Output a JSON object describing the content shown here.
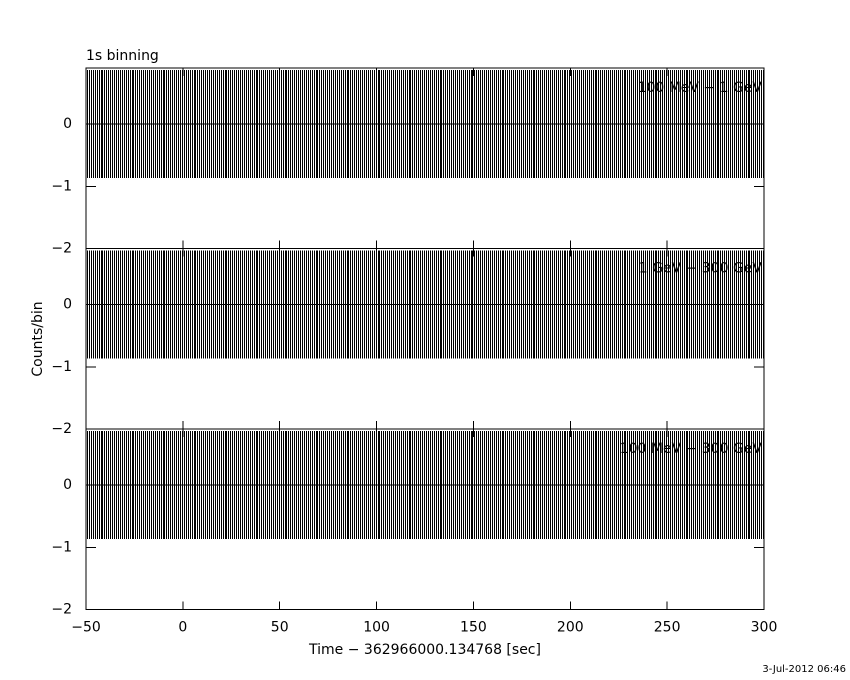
{
  "chart_data": {
    "type": "errorbar",
    "annotations": [
      "1s binning",
      "3-Jul-2012 06:46"
    ],
    "xlabel": "Time − 362966000.134768 [sec]",
    "ylabel": "Counts/bin",
    "xlim": [
      -50,
      300
    ],
    "xticks": [
      {
        "value": -50,
        "label": "−50"
      },
      0,
      50,
      100,
      150,
      200,
      250,
      300
    ],
    "ylim": [
      -2,
      0.9
    ],
    "yticks": [
      {
        "value": -2,
        "label": "−2"
      },
      {
        "value": -1,
        "label": "−1"
      },
      0
    ],
    "x": [
      -49.5,
      -48.5,
      -47.5,
      -46.5,
      -45.5,
      -44.5,
      -43.5,
      -42.5,
      -41.5,
      -40.5,
      -39.5,
      -38.5,
      -37.5,
      -36.5,
      -35.5,
      -34.5,
      -33.5,
      -32.5,
      -31.5,
      -30.5,
      -29.5,
      -28.5,
      -27.5,
      -26.5,
      -25.5,
      -24.5,
      -23.5,
      -22.5,
      -21.5,
      -20.5,
      -19.5,
      -18.5,
      -17.5,
      -16.5,
      -15.5,
      -14.5,
      -13.5,
      -12.5,
      -11.5,
      -10.5,
      -9.5,
      -8.5,
      -7.5,
      -6.5,
      -5.5,
      -4.5,
      -3.5,
      -2.5,
      -1.5,
      -0.5,
      0.5,
      1.5,
      2.5,
      3.5,
      4.5,
      5.5,
      6.5,
      7.5,
      8.5,
      9.5,
      10.5,
      11.5,
      12.5,
      13.5,
      14.5,
      15.5,
      16.5,
      17.5,
      18.5,
      19.5,
      20.5,
      21.5,
      22.5,
      23.5,
      24.5,
      25.5,
      26.5,
      27.5,
      28.5,
      29.5,
      30.5,
      31.5,
      32.5,
      33.5,
      34.5,
      35.5,
      36.5,
      37.5,
      38.5,
      39.5,
      40.5,
      41.5,
      42.5,
      43.5,
      44.5,
      45.5,
      46.5,
      47.5,
      48.5,
      49.5,
      50.5,
      51.5,
      52.5,
      53.5,
      54.5,
      55.5,
      56.5,
      57.5,
      58.5,
      59.5,
      60.5,
      61.5,
      62.5,
      63.5,
      64.5,
      65.5,
      66.5,
      67.5,
      68.5,
      69.5,
      70.5,
      71.5,
      72.5,
      73.5,
      74.5,
      75.5,
      76.5,
      77.5,
      78.5,
      79.5,
      80.5,
      81.5,
      82.5,
      83.5,
      84.5,
      85.5,
      86.5,
      87.5,
      88.5,
      89.5,
      90.5,
      91.5,
      92.5,
      93.5,
      94.5,
      95.5,
      96.5,
      97.5,
      98.5,
      99.5,
      100.5,
      101.5,
      102.5,
      103.5,
      104.5,
      105.5,
      106.5,
      107.5,
      108.5,
      109.5,
      110.5,
      111.5,
      112.5,
      113.5,
      114.5,
      115.5,
      116.5,
      117.5,
      118.5,
      119.5,
      120.5,
      121.5,
      122.5,
      123.5,
      124.5,
      125.5,
      126.5,
      127.5,
      128.5,
      129.5,
      130.5,
      131.5,
      132.5,
      133.5,
      134.5,
      135.5,
      136.5,
      137.5,
      138.5,
      139.5,
      140.5,
      141.5,
      142.5,
      143.5,
      144.5,
      145.5,
      146.5,
      147.5,
      148.5,
      149.5,
      150.5,
      151.5,
      152.5,
      153.5,
      154.5,
      155.5,
      156.5,
      157.5,
      158.5,
      159.5,
      160.5,
      161.5,
      162.5,
      163.5,
      164.5,
      165.5,
      166.5,
      167.5,
      168.5,
      169.5,
      170.5,
      171.5,
      172.5,
      173.5,
      174.5,
      175.5,
      176.5,
      177.5,
      178.5,
      179.5,
      180.5,
      181.5,
      182.5,
      183.5,
      184.5,
      185.5,
      186.5,
      187.5,
      188.5,
      189.5,
      190.5,
      191.5,
      192.5,
      193.5,
      194.5,
      195.5,
      196.5,
      197.5,
      198.5,
      199.5,
      200.5,
      201.5,
      202.5,
      203.5,
      204.5,
      205.5,
      206.5,
      207.5,
      208.5,
      209.5,
      210.5,
      211.5,
      212.5,
      213.5,
      214.5,
      215.5,
      216.5,
      217.5,
      218.5,
      219.5,
      220.5,
      221.5,
      222.5,
      223.5,
      224.5,
      225.5,
      226.5,
      227.5,
      228.5,
      229.5,
      230.5,
      231.5,
      232.5,
      233.5,
      234.5,
      235.5,
      236.5,
      237.5,
      238.5,
      239.5,
      240.5,
      241.5,
      242.5,
      243.5,
      244.5,
      245.5,
      246.5,
      247.5,
      248.5,
      249.5,
      250.5,
      251.5,
      252.5,
      253.5,
      254.5,
      255.5,
      256.5,
      257.5,
      258.5,
      259.5,
      260.5,
      261.5,
      262.5,
      263.5,
      264.5,
      265.5,
      266.5,
      267.5,
      268.5,
      269.5,
      270.5,
      271.5,
      272.5,
      273.5,
      274.5,
      275.5,
      276.5,
      277.5,
      278.5,
      279.5,
      280.5,
      281.5,
      282.5,
      283.5,
      284.5,
      285.5,
      286.5,
      287.5,
      288.5,
      289.5,
      290.5,
      291.5,
      292.5,
      293.5,
      294.5,
      295.5,
      296.5,
      297.5,
      298.5,
      299.5
    ],
    "series": [
      {
        "name": "100 MeV − 1 GeV",
        "color": "#000000",
        "error": 0.87,
        "values": [
          0,
          0,
          0,
          0,
          0,
          0,
          0,
          0,
          0,
          0,
          0,
          0,
          0,
          0,
          0,
          0,
          0,
          0,
          0,
          0,
          0,
          0,
          0,
          0,
          0,
          0,
          0,
          0,
          0,
          0,
          0,
          0,
          0,
          0,
          0,
          0,
          0,
          0,
          0,
          0,
          0,
          0,
          0,
          0,
          0,
          0,
          0,
          0,
          0,
          0,
          0,
          0,
          0,
          0,
          0,
          0,
          0,
          0,
          0,
          0,
          0,
          0,
          0,
          0,
          0,
          0,
          0,
          0,
          0,
          0,
          0,
          0,
          0,
          0,
          0,
          0,
          0,
          0,
          0,
          0,
          0,
          0,
          0,
          0,
          0,
          0,
          0,
          0,
          0,
          0,
          0,
          0,
          0,
          0,
          0,
          0,
          0,
          0,
          0,
          0,
          0,
          0,
          0,
          0,
          0,
          0,
          0,
          0,
          0,
          0,
          0,
          0,
          0,
          0,
          0,
          0,
          0,
          0,
          0,
          0,
          0,
          0,
          0,
          0,
          0,
          0,
          0,
          0,
          0,
          0,
          0,
          0,
          0,
          0,
          0,
          0,
          0,
          0,
          0,
          0,
          0,
          0,
          0,
          0,
          0,
          0,
          0,
          0,
          0,
          0,
          0,
          0,
          0,
          0,
          0,
          0,
          0,
          0,
          0,
          0,
          0,
          0,
          0,
          0,
          0,
          0,
          0,
          0,
          0,
          0,
          0,
          0,
          0,
          0,
          0,
          0,
          0,
          0,
          0,
          0,
          0,
          0,
          0,
          0,
          0,
          0,
          0,
          0,
          0,
          0,
          0,
          0,
          0,
          0,
          0,
          0,
          0,
          0,
          0,
          0,
          0,
          0,
          0,
          0,
          0,
          0,
          0,
          0,
          0,
          0,
          0,
          0,
          0,
          0,
          0,
          0,
          0,
          0,
          0,
          0,
          0,
          0,
          0,
          0,
          0,
          0,
          0,
          0,
          0,
          0,
          0,
          0,
          0,
          0,
          0,
          0,
          0,
          0,
          0,
          0,
          0,
          0,
          0,
          0,
          0,
          0,
          0,
          0,
          0,
          0,
          0,
          0,
          0,
          0,
          0,
          0,
          0,
          0,
          0,
          0,
          0,
          0,
          0,
          0,
          0,
          0,
          0,
          0,
          0,
          0,
          0,
          0,
          0,
          0,
          0,
          0,
          0,
          0,
          0,
          0,
          0,
          0,
          0,
          0,
          0,
          0,
          0,
          0,
          0,
          0,
          0,
          0,
          0,
          0,
          0,
          0,
          0,
          0,
          0,
          0,
          0,
          0,
          0,
          0,
          0,
          0,
          0,
          0,
          0,
          0,
          0,
          0,
          0,
          0,
          0,
          0,
          0,
          0,
          0,
          0,
          0,
          0,
          0,
          0,
          0,
          0,
          0,
          0,
          0,
          0,
          0,
          0,
          0,
          0,
          0,
          0,
          0,
          0,
          0,
          0,
          0,
          0,
          0,
          0,
          0,
          0,
          0,
          0,
          0,
          0
        ]
      },
      {
        "name": "1 GeV − 300 GeV",
        "color": "#000000",
        "error": 0.87,
        "values": [
          0,
          0,
          0,
          0,
          0,
          0,
          0,
          0,
          0,
          0,
          0,
          0,
          0,
          0,
          0,
          0,
          0,
          0,
          0,
          0,
          0,
          0,
          0,
          0,
          0,
          0,
          0,
          0,
          0,
          0,
          0,
          0,
          0,
          0,
          0,
          0,
          0,
          0,
          0,
          0,
          0,
          0,
          0,
          0,
          0,
          0,
          0,
          0,
          0,
          0,
          0,
          0,
          0,
          0,
          0,
          0,
          0,
          0,
          0,
          0,
          0,
          0,
          0,
          0,
          0,
          0,
          0,
          0,
          0,
          0,
          0,
          0,
          0,
          0,
          0,
          0,
          0,
          0,
          0,
          0,
          0,
          0,
          0,
          0,
          0,
          0,
          0,
          0,
          0,
          0,
          0,
          0,
          0,
          0,
          0,
          0,
          0,
          0,
          0,
          0,
          0,
          0,
          0,
          0,
          0,
          0,
          0,
          0,
          0,
          0,
          0,
          0,
          0,
          0,
          0,
          0,
          0,
          0,
          0,
          0,
          0,
          0,
          0,
          0,
          0,
          0,
          0,
          0,
          0,
          0,
          0,
          0,
          0,
          0,
          0,
          0,
          0,
          0,
          0,
          0,
          0,
          0,
          0,
          0,
          0,
          0,
          0,
          0,
          0,
          0,
          0,
          0,
          0,
          0,
          0,
          0,
          0,
          0,
          0,
          0,
          0,
          0,
          0,
          0,
          0,
          0,
          0,
          0,
          0,
          0,
          0,
          0,
          0,
          0,
          0,
          0,
          0,
          0,
          0,
          0,
          0,
          0,
          0,
          0,
          0,
          0,
          0,
          0,
          0,
          0,
          0,
          0,
          0,
          0,
          0,
          0,
          0,
          0,
          0,
          0,
          0,
          0,
          0,
          0,
          0,
          0,
          0,
          0,
          0,
          0,
          0,
          0,
          0,
          0,
          0,
          0,
          0,
          0,
          0,
          0,
          0,
          0,
          0,
          0,
          0,
          0,
          0,
          0,
          0,
          0,
          0,
          0,
          0,
          0,
          0,
          0,
          0,
          0,
          0,
          0,
          0,
          0,
          0,
          0,
          0,
          0,
          0,
          0,
          0,
          0,
          0,
          0,
          0,
          0,
          0,
          0,
          0,
          0,
          0,
          0,
          0,
          0,
          0,
          0,
          0,
          0,
          0,
          0,
          0,
          0,
          0,
          0,
          0,
          0,
          0,
          0,
          0,
          0,
          0,
          0,
          0,
          0,
          0,
          0,
          0,
          0,
          0,
          0,
          0,
          0,
          0,
          0,
          0,
          0,
          0,
          0,
          0,
          0,
          0,
          0,
          0,
          0,
          0,
          0,
          0,
          0,
          0,
          0,
          0,
          0,
          0,
          0,
          0,
          0,
          0,
          0,
          0,
          0,
          0,
          0,
          0,
          0,
          0,
          0,
          0,
          0,
          0,
          0,
          0,
          0,
          0,
          0,
          0,
          0,
          0,
          0,
          0,
          0,
          0,
          0,
          0,
          0,
          0,
          0,
          0,
          0,
          0,
          0,
          0,
          0
        ]
      },
      {
        "name": "100 MeV − 300 GeV",
        "color": "#000000",
        "error": 0.87,
        "values": [
          0,
          0,
          0,
          0,
          0,
          0,
          0,
          0,
          0,
          0,
          0,
          0,
          0,
          0,
          0,
          0,
          0,
          0,
          0,
          0,
          0,
          0,
          0,
          0,
          0,
          0,
          0,
          0,
          0,
          0,
          0,
          0,
          0,
          0,
          0,
          0,
          0,
          0,
          0,
          0,
          0,
          0,
          0,
          0,
          0,
          0,
          0,
          0,
          0,
          0,
          0,
          0,
          0,
          0,
          0,
          0,
          0,
          0,
          0,
          0,
          0,
          0,
          0,
          0,
          0,
          0,
          0,
          0,
          0,
          0,
          0,
          0,
          0,
          0,
          0,
          0,
          0,
          0,
          0,
          0,
          0,
          0,
          0,
          0,
          0,
          0,
          0,
          0,
          0,
          0,
          0,
          0,
          0,
          0,
          0,
          0,
          0,
          0,
          0,
          0,
          0,
          0,
          0,
          0,
          0,
          0,
          0,
          0,
          0,
          0,
          0,
          0,
          0,
          0,
          0,
          0,
          0,
          0,
          0,
          0,
          0,
          0,
          0,
          0,
          0,
          0,
          0,
          0,
          0,
          0,
          0,
          0,
          0,
          0,
          0,
          0,
          0,
          0,
          0,
          0,
          0,
          0,
          0,
          0,
          0,
          0,
          0,
          0,
          0,
          0,
          0,
          0,
          0,
          0,
          0,
          0,
          0,
          0,
          0,
          0,
          0,
          0,
          0,
          0,
          0,
          0,
          0,
          0,
          0,
          0,
          0,
          0,
          0,
          0,
          0,
          0,
          0,
          0,
          0,
          0,
          0,
          0,
          0,
          0,
          0,
          0,
          0,
          0,
          0,
          0,
          0,
          0,
          0,
          0,
          0,
          0,
          0,
          0,
          0,
          0,
          0,
          0,
          0,
          0,
          0,
          0,
          0,
          0,
          0,
          0,
          0,
          0,
          0,
          0,
          0,
          0,
          0,
          0,
          0,
          0,
          0,
          0,
          0,
          0,
          0,
          0,
          0,
          0,
          0,
          0,
          0,
          0,
          0,
          0,
          0,
          0,
          0,
          0,
          0,
          0,
          0,
          0,
          0,
          0,
          0,
          0,
          0,
          0,
          0,
          0,
          0,
          0,
          0,
          0,
          0,
          0,
          0,
          0,
          0,
          0,
          0,
          0,
          0,
          0,
          0,
          0,
          0,
          0,
          0,
          0,
          0,
          0,
          0,
          0,
          0,
          0,
          0,
          0,
          0,
          0,
          0,
          0,
          0,
          0,
          0,
          0,
          0,
          0,
          0,
          0,
          0,
          0,
          0,
          0,
          0,
          0,
          0,
          0,
          0,
          0,
          0,
          0,
          0,
          0,
          0,
          0,
          0,
          0,
          0,
          0,
          0,
          0,
          0,
          0,
          0,
          0,
          0,
          0,
          0,
          0,
          0,
          0,
          0,
          0,
          0,
          0,
          0,
          0,
          0,
          0,
          0,
          0,
          0,
          0,
          0,
          0,
          0,
          0,
          0,
          0,
          0,
          0,
          0,
          0,
          0,
          0,
          0,
          0,
          0,
          0
        ]
      }
    ]
  }
}
